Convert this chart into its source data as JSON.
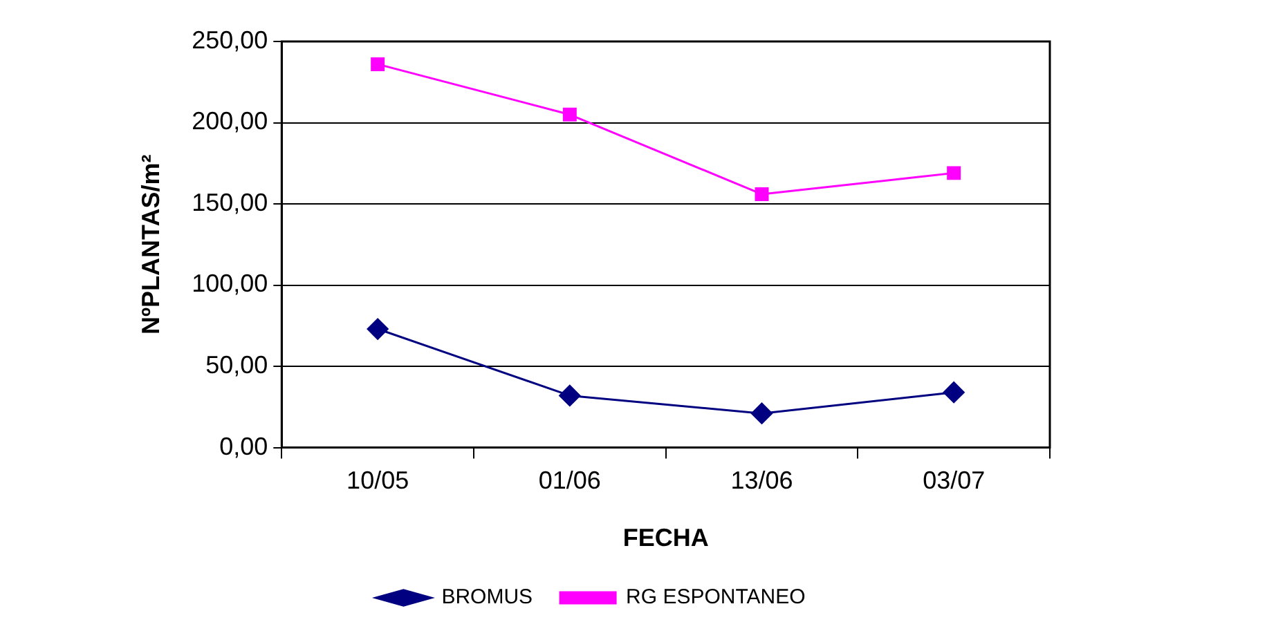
{
  "chart_data": {
    "type": "line",
    "xlabel": "FECHA",
    "ylabel": "NºPLANTAS/m²",
    "categories": [
      "10/05",
      "01/06",
      "13/06",
      "03/07"
    ],
    "series": [
      {
        "name": "BROMUS",
        "color": "#000080",
        "marker": "diamond",
        "values": [
          73,
          32,
          21,
          34
        ]
      },
      {
        "name": "RG ESPONTANEO",
        "color": "#ff00ff",
        "marker": "square",
        "values": [
          236,
          205,
          156,
          169
        ]
      }
    ],
    "ylim": [
      0,
      250
    ],
    "yticks": [
      {
        "value": 0,
        "label": "0,00"
      },
      {
        "value": 50,
        "label": "50,00"
      },
      {
        "value": 100,
        "label": "100,00"
      },
      {
        "value": 150,
        "label": "150,00"
      },
      {
        "value": 200,
        "label": "200,00"
      },
      {
        "value": 250,
        "label": "250,00"
      }
    ],
    "grid": "y",
    "legend": "bottom",
    "line_style": "solid"
  }
}
